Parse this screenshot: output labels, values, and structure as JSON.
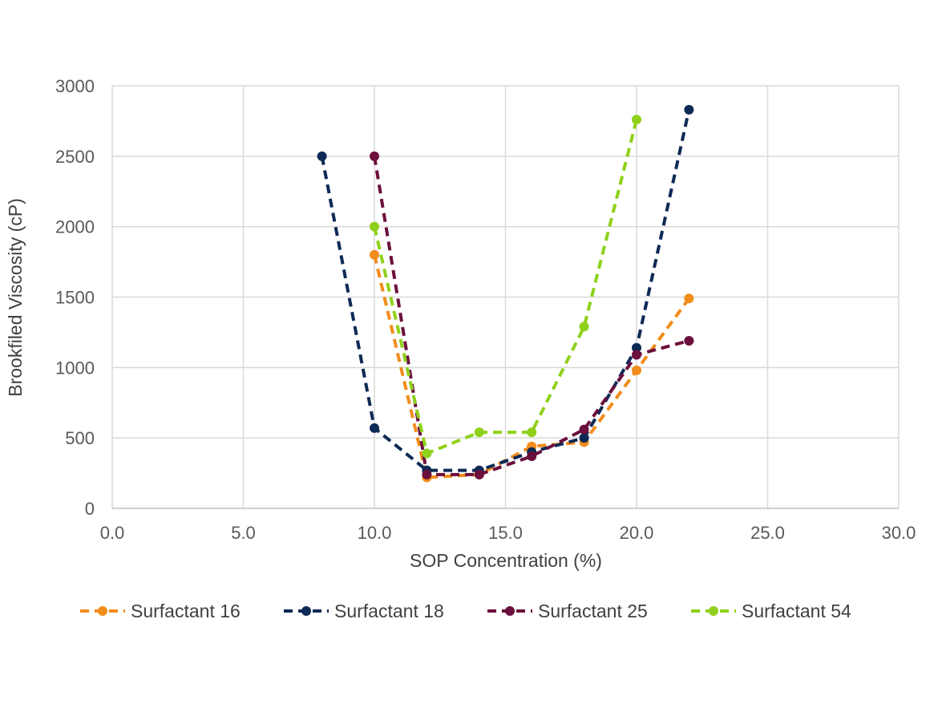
{
  "chart_data": {
    "type": "line",
    "title": "",
    "xlabel": "SOP Concentration (%)",
    "ylabel": "Brookfiled Viscosity (cP)",
    "xlim": [
      0,
      30
    ],
    "ylim": [
      0,
      3000
    ],
    "x_ticks": [
      "0.0",
      "5.0",
      "10.0",
      "15.0",
      "20.0",
      "25.0",
      "30.0"
    ],
    "y_ticks": [
      "0",
      "500",
      "1000",
      "1500",
      "2000",
      "2500",
      "3000"
    ],
    "grid": true,
    "legend_position": "bottom",
    "series": [
      {
        "name": "Surfactant 16",
        "color": "#f28c1c",
        "points": [
          [
            10,
            1800
          ],
          [
            12,
            220
          ],
          [
            14,
            240
          ],
          [
            16,
            440
          ],
          [
            18,
            470
          ],
          [
            20,
            980
          ],
          [
            22,
            1490
          ]
        ]
      },
      {
        "name": "Surfactant 18",
        "color": "#0d2a55",
        "points": [
          [
            8,
            2500
          ],
          [
            10,
            570
          ],
          [
            12,
            270
          ],
          [
            14,
            270
          ],
          [
            16,
            400
          ],
          [
            18,
            500
          ],
          [
            20,
            1140
          ],
          [
            22,
            2830
          ]
        ]
      },
      {
        "name": "Surfactant 25",
        "color": "#6b0f3c",
        "points": [
          [
            10,
            2500
          ],
          [
            12,
            240
          ],
          [
            14,
            240
          ],
          [
            16,
            370
          ],
          [
            18,
            560
          ],
          [
            20,
            1090
          ],
          [
            22,
            1190
          ]
        ]
      },
      {
        "name": "Surfactant 54",
        "color": "#8fd11a",
        "points": [
          [
            10,
            2000
          ],
          [
            12,
            390
          ],
          [
            14,
            540
          ],
          [
            16,
            540
          ],
          [
            18,
            1290
          ],
          [
            20,
            2760
          ]
        ]
      }
    ]
  }
}
